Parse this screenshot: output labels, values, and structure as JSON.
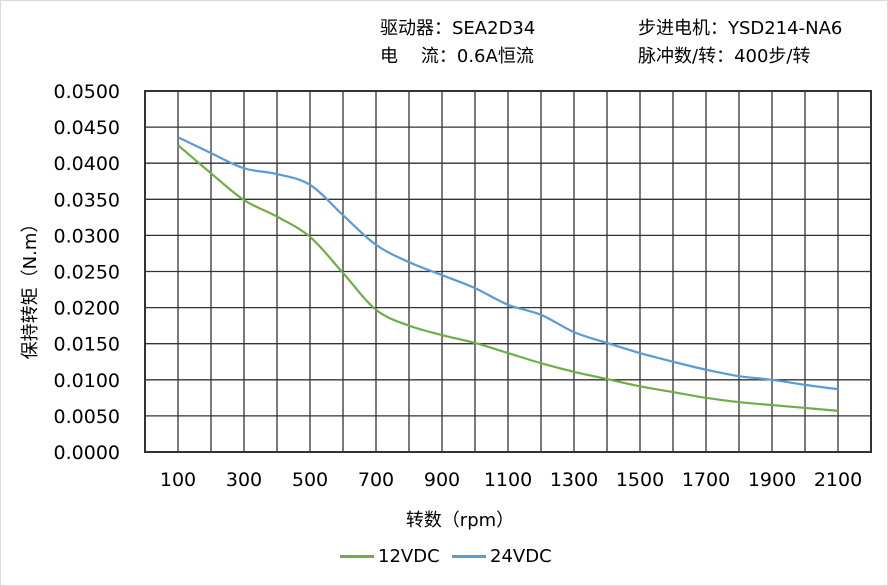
{
  "header": {
    "driver_label": "驱动器：SEA2D34",
    "current_label": "电    流：0.6A恒流",
    "motor_label": "步进电机：YSD214-NA6",
    "pulses_label": "脉冲数/转：400步/转"
  },
  "chart_data": {
    "type": "line",
    "title": "",
    "xlabel": "转数（rpm）",
    "ylabel": "保持转矩（N.m）",
    "xlim": [
      0,
      2200
    ],
    "ylim": [
      0,
      0.05
    ],
    "x_ticks": [
      100,
      300,
      500,
      700,
      900,
      1100,
      1300,
      1500,
      1700,
      1900,
      2100
    ],
    "y_ticks": [
      "0.0000",
      "0.0050",
      "0.0100",
      "0.0150",
      "0.0200",
      "0.0250",
      "0.0300",
      "0.0350",
      "0.0400",
      "0.0450",
      "0.0500"
    ],
    "grid": true,
    "legend_position": "bottom",
    "x": [
      100,
      200,
      300,
      400,
      500,
      600,
      700,
      800,
      900,
      1000,
      1100,
      1200,
      1300,
      1400,
      1500,
      1600,
      1700,
      1800,
      1900,
      2000,
      2100
    ],
    "series": [
      {
        "name": "12VDC",
        "color": "#70ad47",
        "values": [
          0.0425,
          0.0386,
          0.0349,
          0.0326,
          0.0298,
          0.0248,
          0.0197,
          0.0175,
          0.0162,
          0.0151,
          0.0137,
          0.0123,
          0.0111,
          0.0101,
          0.0091,
          0.0083,
          0.0075,
          0.0069,
          0.0065,
          0.0061,
          0.0057
        ]
      },
      {
        "name": "24VDC",
        "color": "#5b9bd5",
        "values": [
          0.0436,
          0.0414,
          0.0393,
          0.0385,
          0.037,
          0.0328,
          0.0287,
          0.0263,
          0.0245,
          0.0227,
          0.0204,
          0.019,
          0.0166,
          0.0151,
          0.0137,
          0.0125,
          0.0114,
          0.0105,
          0.01,
          0.0093,
          0.0087
        ]
      }
    ]
  }
}
